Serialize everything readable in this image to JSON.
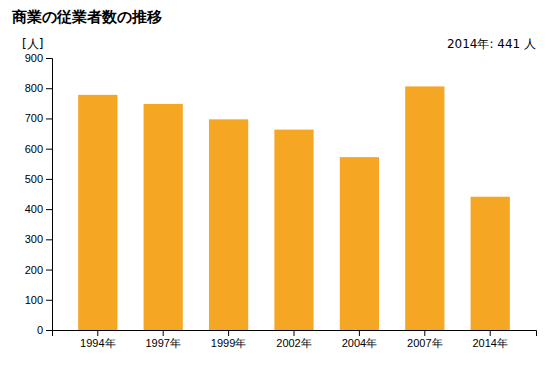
{
  "chart_data": {
    "type": "bar",
    "title": "商業の従業者数の推移",
    "ylabel": "[人]",
    "annotation": "2014年: 441 人",
    "categories": [
      "1994年",
      "1997年",
      "1999年",
      "2002年",
      "2004年",
      "2007年",
      "2014年"
    ],
    "values": [
      778,
      748,
      697,
      663,
      572,
      806,
      441
    ],
    "color": "#F5A623",
    "ylim": [
      0,
      900
    ],
    "yticks": [
      0,
      100,
      200,
      300,
      400,
      500,
      600,
      700,
      800,
      900
    ],
    "grid": false
  }
}
